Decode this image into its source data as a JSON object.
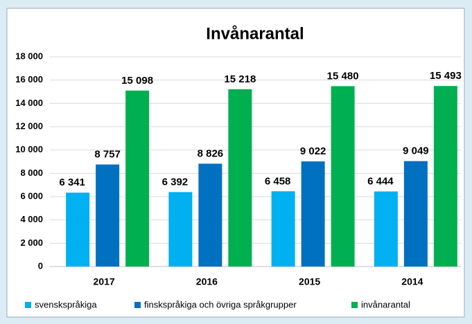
{
  "chart_data": {
    "type": "bar",
    "title": "Invånarantal",
    "categories": [
      "2017",
      "2016",
      "2015",
      "2014"
    ],
    "series": [
      {
        "name": "svenskspråkiga",
        "color": "#00b0f0",
        "values": [
          6341,
          6392,
          6458,
          6444
        ],
        "value_labels": [
          "6 341",
          "6 392",
          "6 458",
          "6 444"
        ]
      },
      {
        "name": "finskspråkiga och övriga språkgrupper",
        "color": "#0070c0",
        "values": [
          8757,
          8826,
          9022,
          9049
        ],
        "value_labels": [
          "8 757",
          "8 826",
          "9 022",
          "9 049"
        ]
      },
      {
        "name": "invånarantal",
        "color": "#00b050",
        "values": [
          15098,
          15218,
          15480,
          15493
        ],
        "value_labels": [
          "15 098",
          "15 218",
          "15 480",
          "15 493"
        ]
      }
    ],
    "ylim": [
      0,
      18000
    ],
    "yticks": [
      0,
      {
        "value": 2000,
        "label": "2 000"
      },
      {
        "value": 4000,
        "label": "4 000"
      },
      {
        "value": 6000,
        "label": "6 000"
      },
      {
        "value": 8000,
        "label": "8 000"
      },
      {
        "value": 10000,
        "label": "10 000"
      },
      {
        "value": 12000,
        "label": "12 000"
      },
      {
        "value": 14000,
        "label": "14 000"
      },
      {
        "value": 16000,
        "label": "16 000"
      },
      {
        "value": 18000,
        "label": "18 000"
      }
    ],
    "grid": true,
    "legend": "bottom"
  }
}
